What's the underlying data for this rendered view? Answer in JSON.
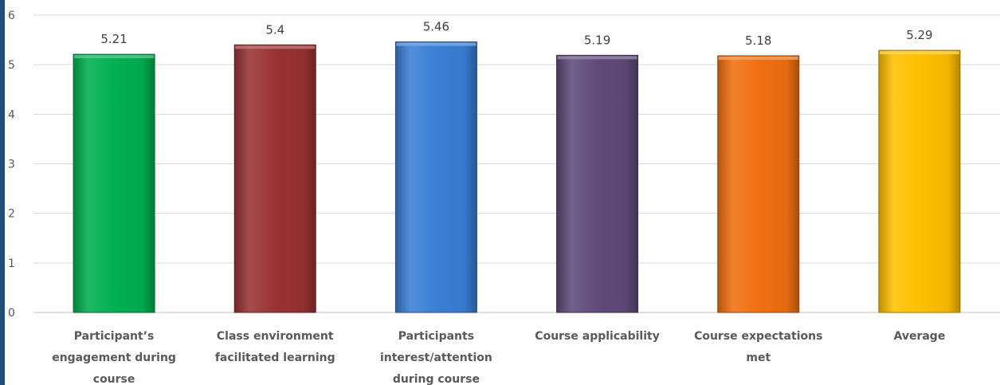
{
  "chart_data": {
    "type": "bar",
    "categories": [
      [
        "Participant’s",
        "engagement during",
        "course"
      ],
      [
        "Class environment",
        "facilitated learning"
      ],
      [
        "Participants",
        "interest/attention",
        "during course"
      ],
      [
        "Course applicability"
      ],
      [
        "Course expectations",
        "met"
      ],
      [
        "Average"
      ]
    ],
    "values": [
      5.21,
      5.4,
      5.46,
      5.19,
      5.18,
      5.29
    ],
    "value_labels": [
      "5.21",
      "5.4",
      "5.46",
      "5.19",
      "5.18",
      "5.29"
    ],
    "y_ticks": [
      "0",
      "1",
      "2",
      "3",
      "4",
      "5",
      "6"
    ],
    "ylim": [
      0,
      6
    ],
    "grid": true,
    "legend": "none",
    "colors": [
      "#00b050",
      "#993333",
      "#3a7fd5",
      "#604a7b",
      "#f07010",
      "#ffc000"
    ],
    "title": "",
    "xlabel": "",
    "ylabel": ""
  }
}
